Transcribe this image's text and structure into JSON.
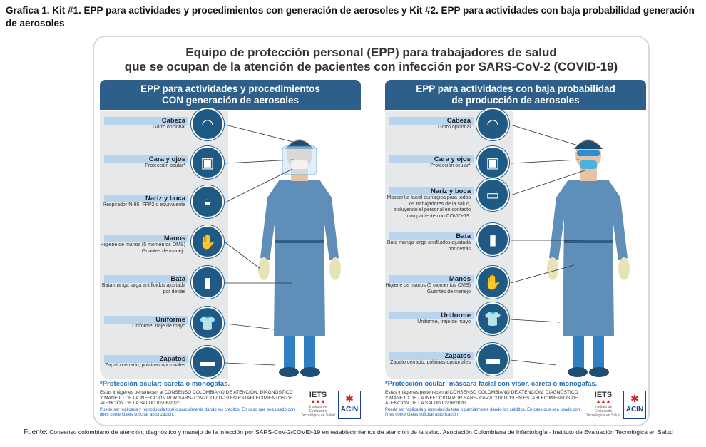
{
  "caption": "Grafica 1. Kit #1. EPP para actividades y procedimientos con generación de aerosoles y Kit #2. EPP para actividades con baja probabilidad generación de aerosoles",
  "title_line1": "Equipo de protección personal (EPP) para trabajadores de salud",
  "title_line2": "que se ocupan de la atención de pacientes con infección por SARS-CoV-2 (COVID-19)",
  "panels": [
    {
      "head1": "EPP para actividades y procedimientos",
      "head2": "CON generación de aerosoles",
      "items": [
        {
          "label": "Cabeza",
          "desc": "Gorro opcional",
          "icon": "cap-icon"
        },
        {
          "label": "Cara y ojos",
          "desc": "Protección ocular*",
          "icon": "face-shield-icon"
        },
        {
          "label": "Nariz y boca",
          "desc": "Respirador N-95, FFP2 o equivalente",
          "icon": "respirator-icon"
        },
        {
          "label": "Manos",
          "desc": "Higiene de manos (5 momentos OMS) Guantes de manejo",
          "icon": "gloves-icon"
        },
        {
          "label": "Bata",
          "desc": "Bata manga larga antifluidos ajustada por detrás",
          "icon": "gown-icon"
        },
        {
          "label": "Uniforme",
          "desc": "Uniforme, traje de mayo",
          "icon": "uniform-icon"
        },
        {
          "label": "Zapatos",
          "desc": "Zapato cerrado, polainas opcionales",
          "icon": "shoe-icon"
        }
      ],
      "note": "*Protección ocular: careta o monogafas."
    },
    {
      "head1": "EPP para actividades con baja probabilidad",
      "head2": "de producción de aerosoles",
      "items": [
        {
          "label": "Cabeza",
          "desc": "Gorro opcional",
          "icon": "cap-icon"
        },
        {
          "label": "Cara y ojos",
          "desc": "Protección ocular*",
          "icon": "face-shield-icon"
        },
        {
          "label": "Nariz y boca",
          "desc": "Mascarilla facial quirúrgica para todos los trabajadores de la salud, incluyendo el personal en contacto con paciente con COVID-19.",
          "icon": "surgical-mask-icon"
        },
        {
          "label": "Bata",
          "desc": "Bata manga larga antifluidos ajustada por detrás",
          "icon": "gown-icon"
        },
        {
          "label": "Manos",
          "desc": "Higiene de manos (5 momentos OMS) Guantes de manejo",
          "icon": "gloves-icon"
        },
        {
          "label": "Uniforme",
          "desc": "Uniforme, traje de mayo",
          "icon": "uniform-icon"
        },
        {
          "label": "Zapatos",
          "desc": "Zapato cerrado, polainas opcionales",
          "icon": "shoe-icon"
        }
      ],
      "note": "*Protección ocular: máscara facial con visor, careta o monogafas."
    }
  ],
  "legal": "Estas imágenes pertenecen al CONSENSO COLOMBIANO DE ATENCIÓN, DIAGNÓSTICO Y MANEJO DE LA INFECCIÓN POR SARS- CoV2/COVID-19 EN ESTABLECIMIENTOS DE ATENCIÓN DE LA SALUD 02/06/2020",
  "legal2": "Puede ser replicada y reproducida total o parcialmente dando los créditos. En caso que sea usado con fines comerciales solicitar autorización.",
  "logos": {
    "iets": "IETS",
    "iets_sub": "Instituto de Evaluación Tecnológica en Salud",
    "acin": "ACIN"
  },
  "fuente_label": "Fuente:",
  "fuente": "Consenso colombiano de atención, diagnóstico y manejo de la infección por SARS-CoV-2/COVID-19 en establecimientos de atención de la salud. Asociación Colombiana de Infectología - Instituto de Evaluación Tecnológica en Salud",
  "colors": {
    "panel_head": "#2d5f8a",
    "icon_circle": "#1f5a84",
    "label_bg": "#b9d4ef",
    "gown": "#5f8fb8",
    "note": "#2270b8"
  }
}
